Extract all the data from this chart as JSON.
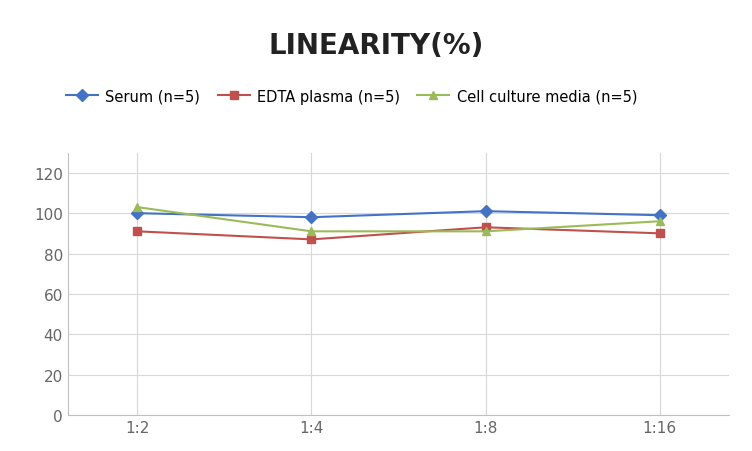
{
  "title": "LINEARITY(%)",
  "x_labels": [
    "1:2",
    "1:4",
    "1:8",
    "1:16"
  ],
  "series": [
    {
      "label": "Serum (n=5)",
      "values": [
        100,
        98,
        101,
        99
      ],
      "color": "#4472C4",
      "marker": "D",
      "linewidth": 1.5
    },
    {
      "label": "EDTA plasma (n=5)",
      "values": [
        91,
        87,
        93,
        90
      ],
      "color": "#C0504D",
      "marker": "s",
      "linewidth": 1.5
    },
    {
      "label": "Cell culture media (n=5)",
      "values": [
        103,
        91,
        91,
        96
      ],
      "color": "#9BBB59",
      "marker": "^",
      "linewidth": 1.5
    }
  ],
  "ylim": [
    0,
    130
  ],
  "yticks": [
    0,
    20,
    40,
    60,
    80,
    100,
    120
  ],
  "title_fontsize": 20,
  "legend_fontsize": 10.5,
  "tick_fontsize": 11,
  "background_color": "#ffffff",
  "grid_color": "#d8d8d8",
  "spine_color": "#c0c0c0"
}
